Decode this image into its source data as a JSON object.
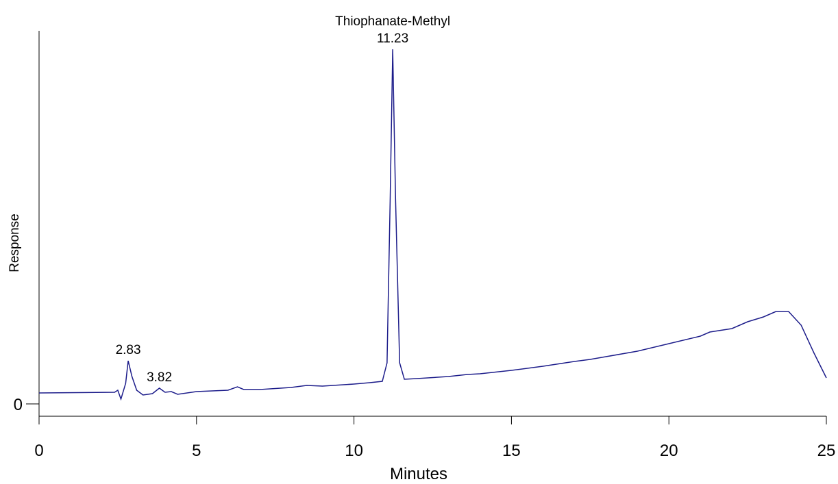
{
  "chart_data": {
    "type": "line",
    "xlabel": "Minutes",
    "ylabel": "Response",
    "x": [
      0,
      2.4,
      2.5,
      2.6,
      2.75,
      2.83,
      2.95,
      3.1,
      3.3,
      3.6,
      3.82,
      4.0,
      4.2,
      4.4,
      5,
      6,
      6.3,
      6.5,
      7,
      8,
      8.5,
      9,
      10,
      10.5,
      10.9,
      11.05,
      11.15,
      11.23,
      11.32,
      11.45,
      11.6,
      12,
      13,
      13.6,
      14,
      15,
      16,
      17,
      17.5,
      18,
      19,
      20,
      21,
      21.3,
      22,
      22.5,
      23,
      23.4,
      23.8,
      24.2,
      24.6,
      25
    ],
    "values": [
      16,
      17,
      20,
      7,
      30,
      63,
      40,
      20,
      13,
      15,
      23,
      17,
      18,
      14,
      18,
      20,
      25,
      21,
      21,
      24,
      27,
      26,
      29,
      31,
      33,
      60,
      300,
      518,
      300,
      60,
      36,
      37,
      40,
      43,
      44,
      49,
      55,
      62,
      65,
      69,
      77,
      88,
      99,
      105,
      110,
      120,
      127,
      135,
      135,
      115,
      75,
      38
    ],
    "color": "#1c1c8a",
    "xlim": [
      0,
      25
    ],
    "xticks": [
      0,
      5,
      10,
      15,
      20,
      25
    ],
    "ylim": [
      -18,
      545
    ],
    "yticks": [
      0
    ],
    "annotations": [
      {
        "x": 2.83,
        "y": 63,
        "lines": [
          "2.83"
        ]
      },
      {
        "x": 3.82,
        "y": 23,
        "lines": [
          "3.82"
        ]
      },
      {
        "x": 11.23,
        "y": 518,
        "lines": [
          "Thiophanate-Methyl",
          "11.23"
        ]
      }
    ]
  }
}
